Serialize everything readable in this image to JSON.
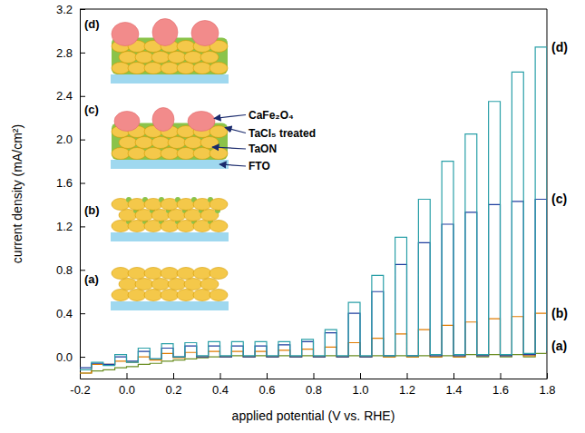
{
  "chart_data": {
    "type": "line",
    "x_label": "applied potential (V vs. RHE)",
    "y_label": "current density (mA/cm²)",
    "xlim": [
      -0.2,
      1.8
    ],
    "xticks": [
      -0.2,
      {
        "value": 0,
        "label": "0.0"
      },
      0.2,
      0.4,
      0.6,
      0.8,
      {
        "value": 1,
        "label": "1.0"
      },
      1.2,
      1.4,
      1.6,
      1.8
    ],
    "ylim": [
      -0.2,
      3.2
    ],
    "yticks": [
      {
        "value": 0,
        "label": "0.0"
      },
      0.4,
      0.8,
      1.2,
      1.6,
      {
        "value": 2,
        "label": "2.0"
      },
      2.4,
      2.8,
      3.2
    ],
    "x": [
      -0.2,
      -0.15,
      -0.1,
      -0.05,
      0,
      0.05,
      0.1,
      0.15,
      0.2,
      0.25,
      0.3,
      0.35,
      0.4,
      0.45,
      0.5,
      0.55,
      0.6,
      0.65,
      0.7,
      0.75,
      0.8,
      0.85,
      0.9,
      0.95,
      1,
      1.05,
      1.1,
      1.15,
      1.2,
      1.25,
      1.3,
      1.35,
      1.4,
      1.45,
      1.5,
      1.55,
      1.6,
      1.65,
      1.7,
      1.75,
      1.8
    ],
    "series": [
      {
        "name": "(a)",
        "color": "#6b8e23",
        "values": [
          -0.15,
          -0.13,
          -0.12,
          -0.1,
          -0.09,
          -0.07,
          -0.06,
          -0.04,
          -0.03,
          -0.02,
          -0.01,
          0,
          0,
          0.01,
          0,
          0.01,
          0,
          0.01,
          0,
          0.01,
          0,
          0.01,
          0,
          0.01,
          0,
          0.01,
          0,
          0.01,
          0,
          0.01,
          0,
          0.01,
          0,
          0.02,
          0,
          0.02,
          0,
          0.02,
          0,
          0.03,
          0.1
        ]
      },
      {
        "name": "(b)",
        "color": "#e07b00",
        "values": [
          -0.15,
          -0.07,
          -0.07,
          -0.04,
          -0.05,
          0,
          -0.03,
          0.03,
          -0.01,
          0.04,
          0,
          0.05,
          0,
          0.05,
          0,
          0.05,
          0,
          0.06,
          0,
          0.07,
          0,
          0.09,
          0,
          0.13,
          0,
          0.17,
          0,
          0.21,
          0,
          0.25,
          0,
          0.29,
          0,
          0.32,
          0.01,
          0.35,
          0.01,
          0.37,
          0.01,
          0.4,
          0.03
        ]
      },
      {
        "name": "(c)",
        "color": "#1f3f9f",
        "values": [
          -0.1,
          -0.06,
          -0.07,
          0,
          -0.04,
          0.05,
          -0.02,
          0.08,
          0,
          0.1,
          0,
          0.1,
          0,
          0.1,
          0,
          0.1,
          0,
          0.11,
          0,
          0.14,
          0,
          0.22,
          0,
          0.4,
          0,
          0.6,
          0.01,
          0.85,
          0.01,
          1.05,
          0.01,
          1.22,
          0.01,
          1.33,
          0.01,
          1.4,
          0.01,
          1.43,
          0.02,
          1.45,
          0.03
        ]
      },
      {
        "name": "(d)",
        "color": "#2aa0a8",
        "values": [
          -0.12,
          -0.05,
          -0.08,
          0.02,
          -0.05,
          0.08,
          -0.02,
          0.12,
          0,
          0.13,
          0.01,
          0.14,
          0.01,
          0.14,
          0.01,
          0.14,
          0.01,
          0.14,
          0.01,
          0.16,
          0.01,
          0.25,
          0.01,
          0.5,
          0.01,
          0.75,
          0.01,
          1.1,
          0.01,
          1.45,
          0.02,
          1.8,
          0.02,
          2.05,
          0.02,
          2.35,
          0.02,
          2.62,
          0.03,
          2.85,
          0.05
        ]
      }
    ],
    "annotations": [
      "CaFe₂O₄",
      "TaCl₅ treated",
      "TaON",
      "FTO"
    ]
  }
}
